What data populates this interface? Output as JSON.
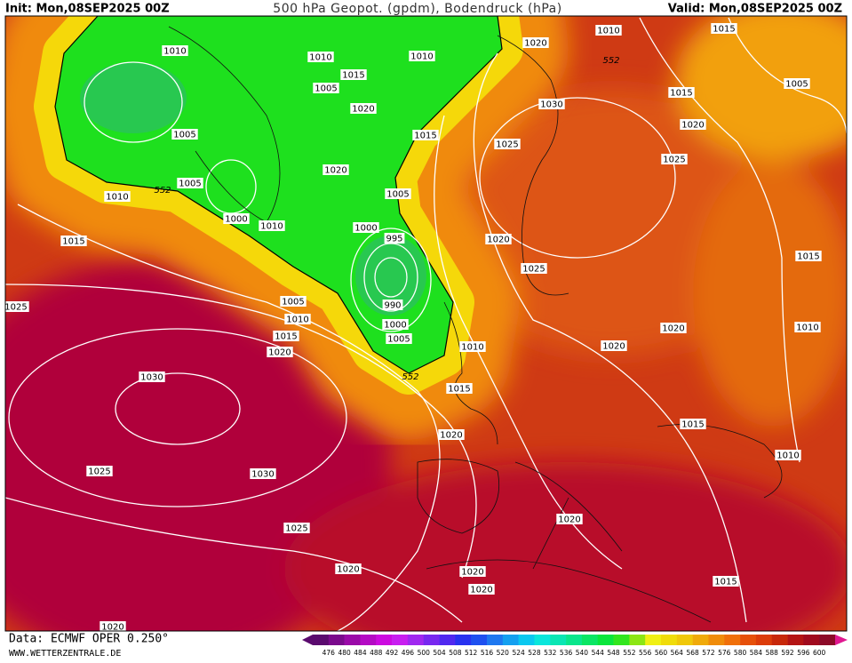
{
  "header": {
    "init": "Init: Mon,08SEP2025 00Z",
    "title": "500 hPa Geopot. (gpdm), Bodendruck (hPa)",
    "valid": "Valid: Mon,08SEP2025 00Z"
  },
  "isobar_labels": [
    "1010",
    "1010",
    "1010",
    "1020",
    "1010",
    "1015",
    "1015",
    "1005",
    "1020",
    "1015",
    "1005",
    "1030",
    "1020",
    "1005",
    "1015",
    "1025",
    "1025",
    "1020",
    "1005",
    "1010",
    "1005",
    "1000",
    "1010",
    "1000",
    "995",
    "1020",
    "1015",
    "1025",
    "1015",
    "1005",
    "990",
    "1010",
    "1000",
    "1020",
    "1010",
    "1025",
    "1015",
    "1005",
    "1020",
    "1010",
    "1020",
    "1015",
    "1030",
    "1015",
    "1020",
    "1010",
    "1025",
    "1030",
    "1020",
    "1025",
    "1020",
    "1020",
    "1020",
    "1015",
    "1020"
  ],
  "geopotential_labels": [
    "552",
    "552",
    "552"
  ],
  "colorbar": {
    "labels": [
      476,
      480,
      484,
      488,
      492,
      496,
      500,
      504,
      508,
      512,
      516,
      520,
      524,
      528,
      532,
      536,
      540,
      544,
      548,
      552,
      556,
      560,
      564,
      568,
      572,
      576,
      580,
      584,
      588,
      592,
      596,
      600
    ],
    "colors": [
      "#5a0a6e",
      "#7a0a8c",
      "#9a0aa8",
      "#b40ac4",
      "#cc0ae0",
      "#c81ef0",
      "#a028f0",
      "#7828f0",
      "#5028f0",
      "#2832f0",
      "#1e50f0",
      "#1e78f0",
      "#14a0f0",
      "#0ac8f0",
      "#0ae6dc",
      "#0ae6b4",
      "#0ae68c",
      "#0ae664",
      "#0ae63c",
      "#32e61e",
      "#8ce614",
      "#f0f014",
      "#f0dc0a",
      "#f0c80a",
      "#f0aa0a",
      "#f08c0a",
      "#f0700a",
      "#e6500a",
      "#dc3c0a",
      "#c8280a",
      "#b41414",
      "#a00a1e",
      "#8c0a28"
    ]
  },
  "footer": {
    "source": "Data: ECMWF OPER 0.250°",
    "site": "WWW.WETTERZENTRALE.DE"
  }
}
